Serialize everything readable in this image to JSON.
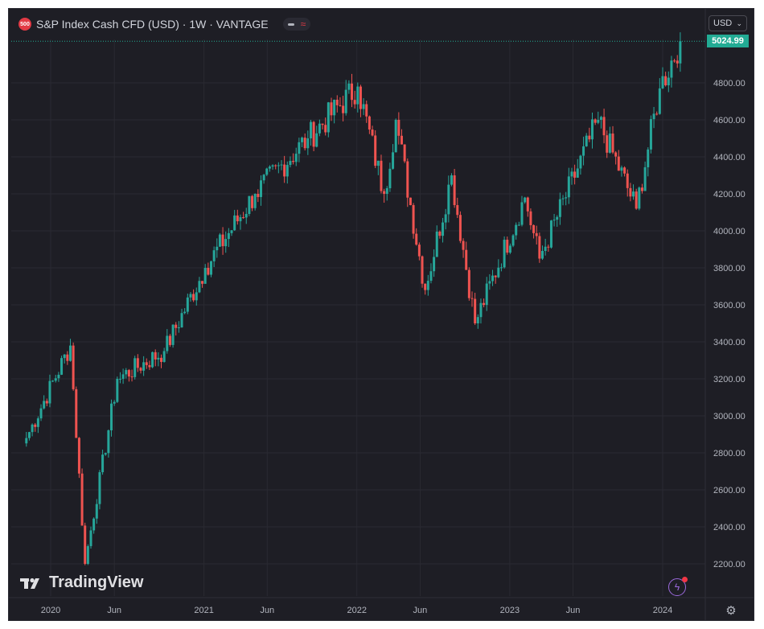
{
  "header": {
    "symbol_badge": "500",
    "title": "S&P Index Cash CFD (USD) · 1W · VANTAGE",
    "currency": "USD"
  },
  "price_scale": {
    "last_price_label": "5024.99",
    "tick_labels": [
      "4800.00",
      "4600.00",
      "4400.00",
      "4200.00",
      "4000.00",
      "3800.00",
      "3600.00",
      "3400.00",
      "3200.00",
      "3000.00",
      "2800.00",
      "2600.00",
      "2400.00",
      "2200.00"
    ]
  },
  "time_scale": {
    "tick_labels": [
      "2020",
      "Jun",
      "2021",
      "Jun",
      "2022",
      "Jun",
      "2023",
      "Jun",
      "2024"
    ]
  },
  "branding": {
    "logo_text": "TradingView"
  },
  "colors": {
    "background": "#1e1e25",
    "up": "#26a69a",
    "down": "#ef5350",
    "grid": "#2a2a32",
    "last_price": "#22ab94"
  },
  "chart_data": {
    "type": "candlestick",
    "timeframe": "1W",
    "ylim": [
      2100,
      5100
    ],
    "last_price": 5024.99,
    "key_points": [
      {
        "date": "2019-11-04",
        "close": 2880
      },
      {
        "date": "2020-02-17",
        "close": 3380
      },
      {
        "date": "2020-03-23",
        "close": 2200
      },
      {
        "date": "2020-06-08",
        "close": 3200
      },
      {
        "date": "2020-09-28",
        "close": 3350
      },
      {
        "date": "2021-01-04",
        "close": 3800
      },
      {
        "date": "2021-05-03",
        "close": 4200
      },
      {
        "date": "2021-09-06",
        "close": 4500
      },
      {
        "date": "2022-01-03",
        "close": 4780
      },
      {
        "date": "2022-03-07",
        "close": 4200
      },
      {
        "date": "2022-04-04",
        "close": 4600
      },
      {
        "date": "2022-06-13",
        "close": 3680
      },
      {
        "date": "2022-08-15",
        "close": 4300
      },
      {
        "date": "2022-10-10",
        "close": 3500
      },
      {
        "date": "2023-02-06",
        "close": 4180
      },
      {
        "date": "2023-03-13",
        "close": 3850
      },
      {
        "date": "2023-07-31",
        "close": 4600
      },
      {
        "date": "2023-10-30",
        "close": 4120
      },
      {
        "date": "2023-12-25",
        "close": 4770
      },
      {
        "date": "2024-02-12",
        "close": 5025
      }
    ]
  }
}
